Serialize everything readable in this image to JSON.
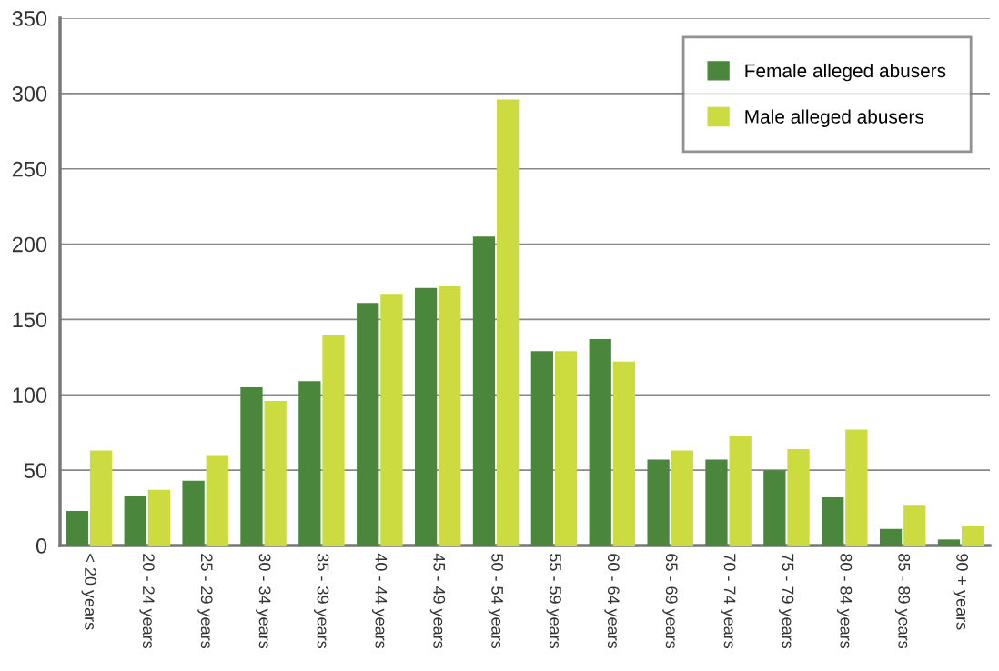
{
  "chart_data": {
    "type": "bar",
    "categories": [
      "< 20 years",
      "20 - 24 years",
      "25 - 29 years",
      "30 - 34 years",
      "35 - 39 years",
      "40 - 44 years",
      "45 - 49 years",
      "50 - 54 years",
      "55 - 59 years",
      "60 - 64 years",
      "65 - 69 years",
      "70 - 74 years",
      "75 - 79 years",
      "80 - 84 years",
      "85 - 89 years",
      "90 + years"
    ],
    "series": [
      {
        "name": "Female alleged abusers",
        "color": "#4a873c",
        "values": [
          23,
          33,
          43,
          105,
          109,
          161,
          171,
          205,
          129,
          137,
          57,
          57,
          50,
          32,
          11,
          4
        ]
      },
      {
        "name": "Male alleged abusers",
        "color": "#cbdb40",
        "values": [
          63,
          37,
          60,
          96,
          140,
          167,
          172,
          296,
          129,
          122,
          63,
          73,
          64,
          77,
          27,
          13
        ]
      }
    ],
    "ylim": [
      0,
      350
    ],
    "yticks": [
      0,
      50,
      100,
      150,
      200,
      250,
      300,
      350
    ],
    "grid": "y",
    "legend": "top right"
  }
}
